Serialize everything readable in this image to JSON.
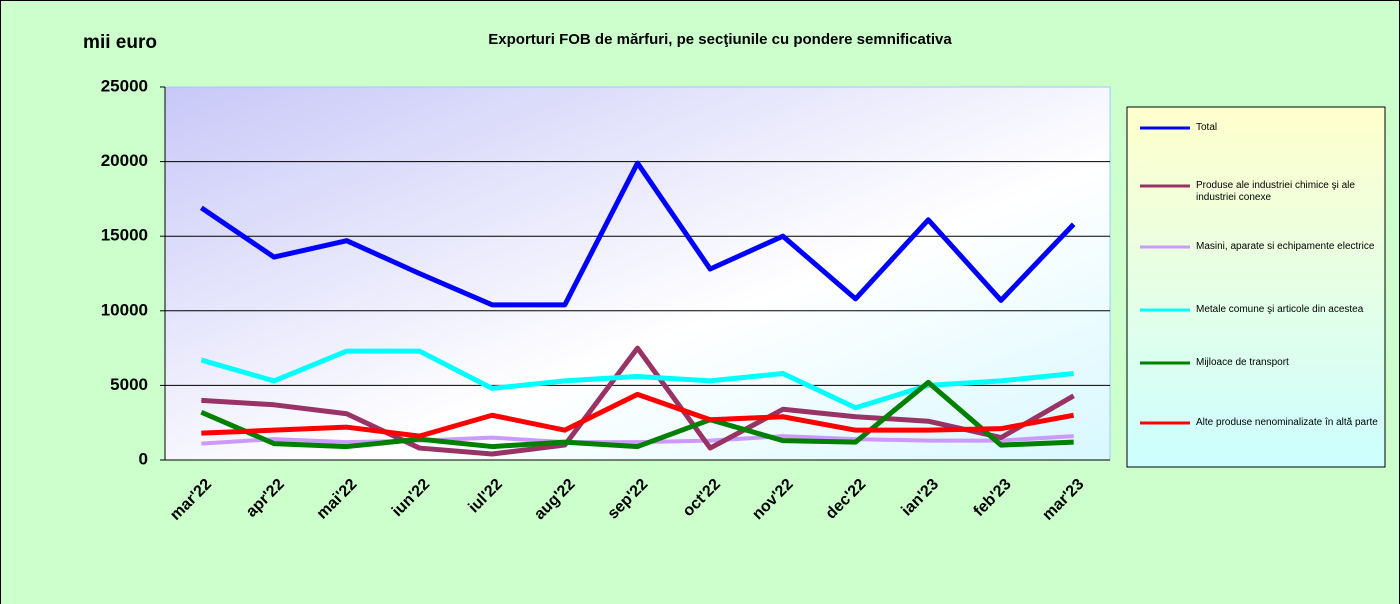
{
  "chart_data": {
    "type": "line",
    "title": "Exporturi FOB de mărfuri, pe secţiunile  cu pondere semnificativa",
    "y_label": "mii euro",
    "categories": [
      "mar'22",
      "apr'22",
      "mai'22",
      "iun'22",
      "iul'22",
      "aug'22",
      "sep'22",
      "oct'22",
      "nov'22",
      "dec'22",
      "ian'23",
      "feb'23",
      "mar'23"
    ],
    "ylim": [
      0,
      25000
    ],
    "yticks": [
      0,
      5000,
      10000,
      15000,
      20000,
      25000
    ],
    "grid": true,
    "series": [
      {
        "name": "Total",
        "color": "#0000ff",
        "values": [
          16900,
          13600,
          14700,
          12500,
          10400,
          10400,
          19900,
          12800,
          15000,
          10800,
          16100,
          10700,
          15800
        ]
      },
      {
        "name": "Produse ale industriei chimice şi ale industriei conexe",
        "color": "#993366",
        "values": [
          4000,
          3700,
          3100,
          800,
          400,
          1000,
          7500,
          800,
          3400,
          2900,
          2600,
          1500,
          4300
        ]
      },
      {
        "name": "Masini, aparate si echipamente electrice",
        "color": "#cc99ff",
        "values": [
          1100,
          1400,
          1200,
          1300,
          1500,
          1200,
          1200,
          1300,
          1600,
          1400,
          1300,
          1300,
          1600
        ]
      },
      {
        "name": "Metale comune şi articole din acestea",
        "color": "#00ffff",
        "values": [
          6700,
          5300,
          7300,
          7300,
          4800,
          5300,
          5600,
          5300,
          5800,
          3500,
          5000,
          5300,
          5800
        ]
      },
      {
        "name": "Mijloace de transport",
        "color": "#008000",
        "values": [
          3200,
          1100,
          900,
          1400,
          900,
          1200,
          900,
          2700,
          1300,
          1200,
          5200,
          1000,
          1200
        ]
      },
      {
        "name": "Alte produse nenominalizate în altă parte",
        "color": "#ff0000",
        "values": [
          1800,
          2000,
          2200,
          1600,
          3000,
          2000,
          4400,
          2700,
          2900,
          2000,
          2000,
          2100,
          3000
        ]
      }
    ]
  }
}
